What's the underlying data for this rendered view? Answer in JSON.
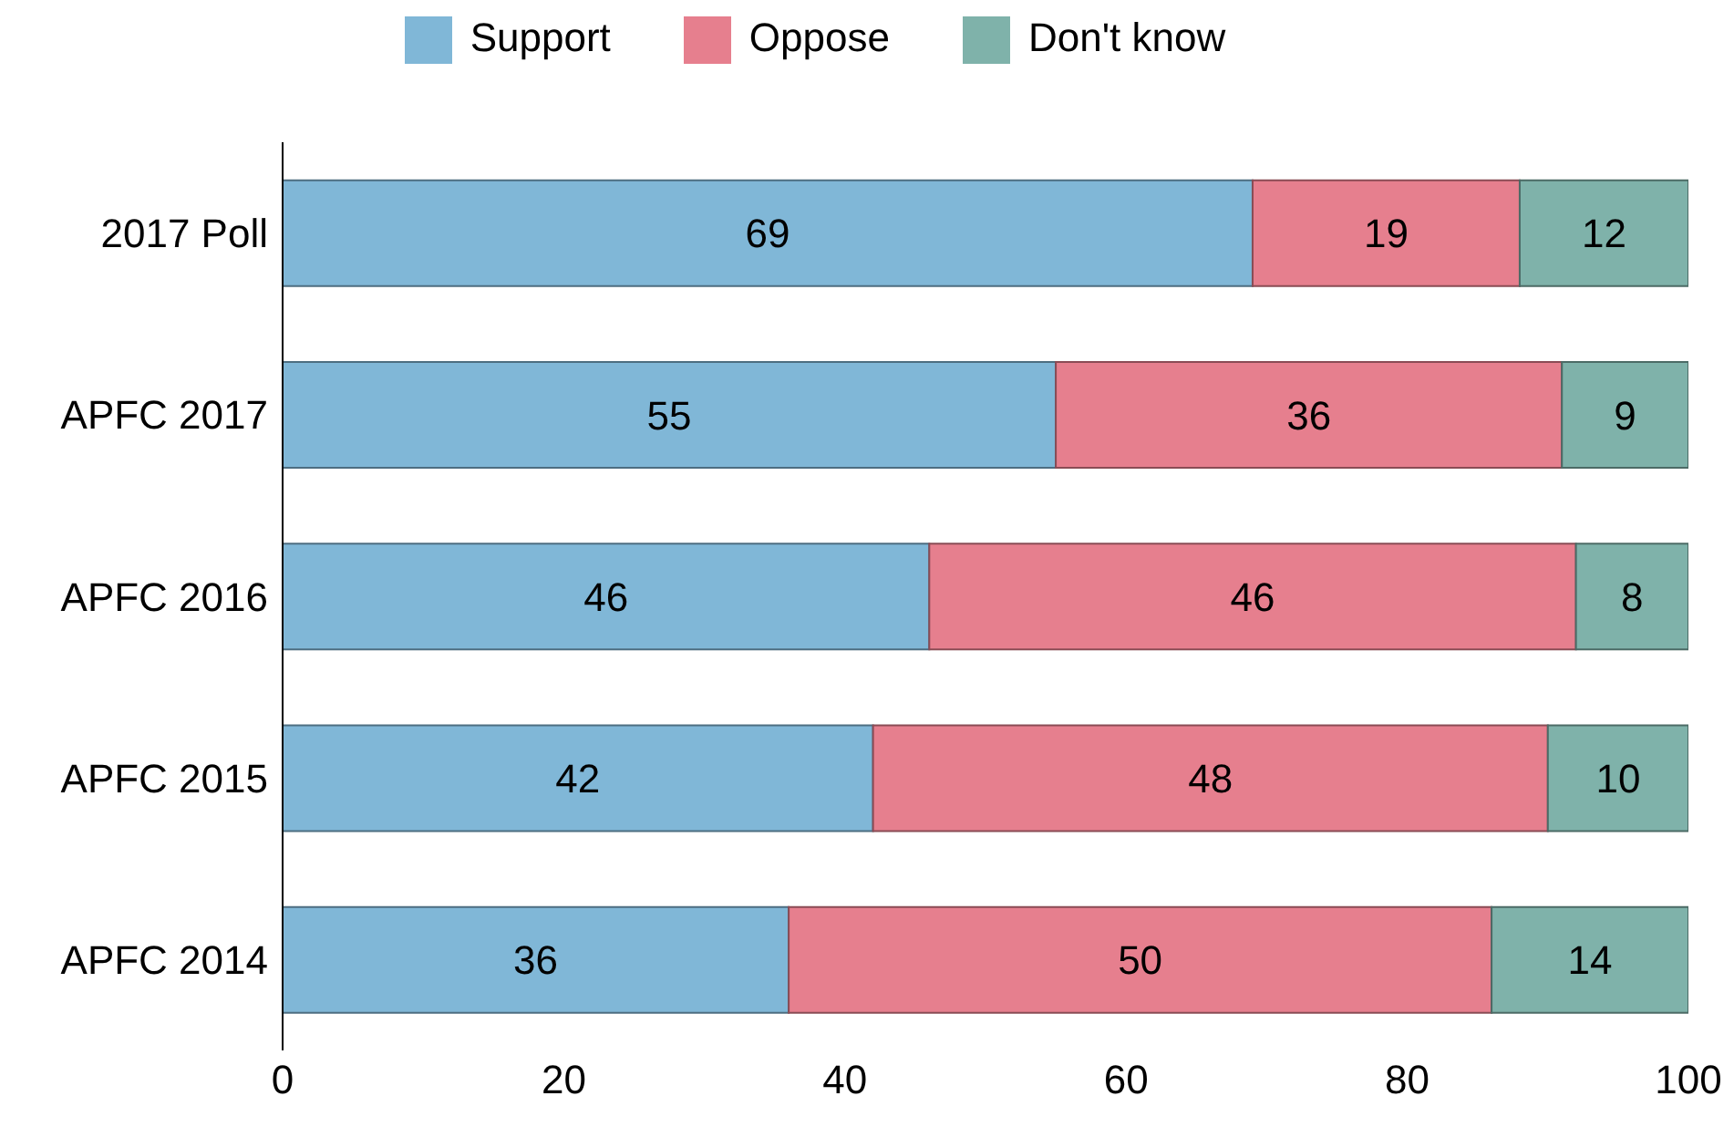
{
  "chart_data": {
    "type": "bar",
    "orientation": "horizontal",
    "stacked": true,
    "categories": [
      "2017 Poll",
      "APFC 2017",
      "APFC 2016",
      "APFC 2015",
      "APFC 2014"
    ],
    "series": [
      {
        "name": "Support",
        "color": "#80b7d7",
        "values": [
          69,
          55,
          46,
          42,
          36
        ]
      },
      {
        "name": "Oppose",
        "color": "#e67f8e",
        "values": [
          19,
          36,
          46,
          48,
          50
        ]
      },
      {
        "name": "Don't know",
        "color": "#7fb2aa",
        "values": [
          12,
          9,
          8,
          10,
          14
        ]
      }
    ],
    "xlim": [
      0,
      100
    ],
    "xticks": [
      0,
      20,
      40,
      60,
      80,
      100
    ],
    "data_labels": true,
    "grid": false,
    "legend": "top"
  }
}
